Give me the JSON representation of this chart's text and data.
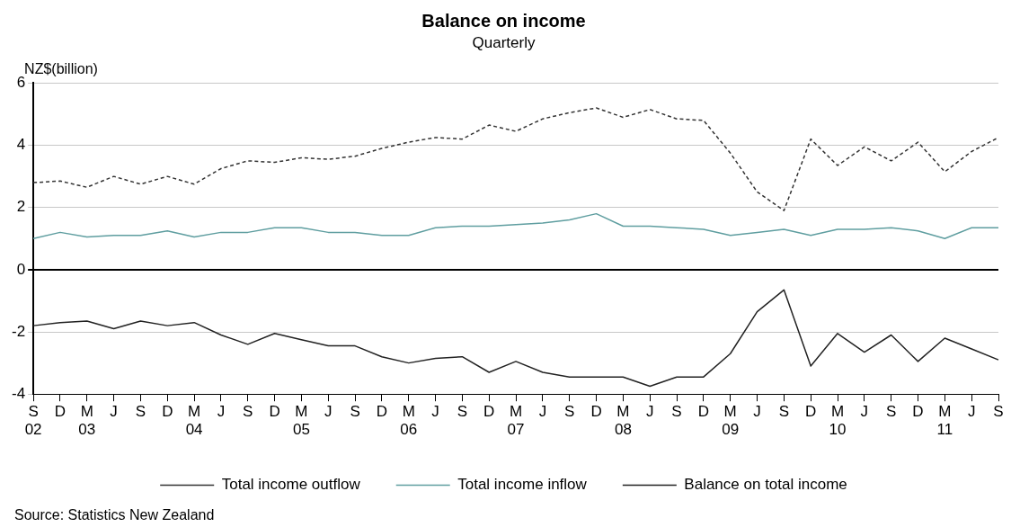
{
  "chart_data": {
    "type": "line",
    "title": "Balance on income",
    "subtitle": "Quarterly",
    "ylabel": "NZ$(billion)",
    "categories": [
      "S\n02",
      "D",
      "M\n03",
      "J",
      "S",
      "D",
      "M\n04",
      "J",
      "S",
      "D",
      "M\n05",
      "J",
      "S",
      "D",
      "M\n06",
      "J",
      "S",
      "D",
      "M\n07",
      "J",
      "S",
      "D",
      "M\n08",
      "J",
      "S",
      "D",
      "M\n09",
      "J",
      "S",
      "D",
      "M\n10",
      "J",
      "S",
      "D",
      "M\n11",
      "J",
      "S"
    ],
    "series": [
      {
        "name": "Total income outflow",
        "color": "#333333",
        "line_style": "dashed",
        "values": [
          2.8,
          2.85,
          2.65,
          3.0,
          2.75,
          3.0,
          2.75,
          3.25,
          3.5,
          3.45,
          3.6,
          3.55,
          3.65,
          3.9,
          4.1,
          4.25,
          4.2,
          4.65,
          4.45,
          4.85,
          5.05,
          5.2,
          4.9,
          5.15,
          4.85,
          4.8,
          3.75,
          2.5,
          1.9,
          4.2,
          3.35,
          3.95,
          3.5,
          4.1,
          3.15,
          3.8,
          4.25
        ]
      },
      {
        "name": "Total income inflow",
        "color": "#5f9ea0",
        "line_style": "solid",
        "values": [
          1.0,
          1.2,
          1.05,
          1.1,
          1.1,
          1.25,
          1.05,
          1.2,
          1.2,
          1.35,
          1.35,
          1.2,
          1.2,
          1.1,
          1.1,
          1.35,
          1.4,
          1.4,
          1.45,
          1.5,
          1.6,
          1.8,
          1.4,
          1.4,
          1.35,
          1.3,
          1.1,
          1.2,
          1.3,
          1.1,
          1.3,
          1.3,
          1.35,
          1.25,
          1.0,
          1.35,
          1.35
        ]
      },
      {
        "name": "Balance on total income",
        "color": "#222222",
        "line_style": "solid",
        "values": [
          -1.8,
          -1.7,
          -1.65,
          -1.9,
          -1.65,
          -1.8,
          -1.7,
          -2.1,
          -2.4,
          -2.05,
          -2.25,
          -2.45,
          -2.45,
          -2.8,
          -3.0,
          -2.85,
          -2.8,
          -3.3,
          -2.95,
          -3.3,
          -3.45,
          -3.45,
          -3.45,
          -3.75,
          -3.45,
          -3.45,
          -2.7,
          -1.35,
          -0.65,
          -3.1,
          -2.05,
          -2.65,
          -2.1,
          -2.95,
          -2.2,
          -2.55,
          -2.9
        ]
      }
    ],
    "ylim": [
      -4,
      6
    ],
    "yticks": [
      -4,
      -2,
      0,
      2,
      4,
      6
    ],
    "grid": "y",
    "legend": "bottom",
    "marker": "none",
    "annotations": [
      "Source: Statistics New Zealand"
    ]
  }
}
